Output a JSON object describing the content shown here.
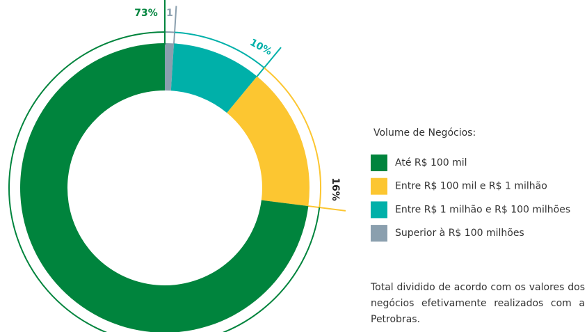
{
  "chart_data": {
    "type": "pie",
    "legend_title": "Volume de Negócios:",
    "categories": [
      "Até R$ 100 mil",
      "Entre R$ 100 mil e R$ 1 milhão",
      "Entre R$ 1 milhão e R$ 100 milhões",
      "Superior à R$ 100 milhões"
    ],
    "values": [
      73,
      16,
      10,
      1
    ],
    "value_labels": [
      "73%",
      "16%",
      "10%",
      "1"
    ],
    "colors": [
      "#00843d",
      "#fcc631",
      "#00b0a9",
      "#8a9fae"
    ],
    "note": "Total dividido de acordo com os valores dos negócios efetivamente realizados com a Petrobras."
  }
}
